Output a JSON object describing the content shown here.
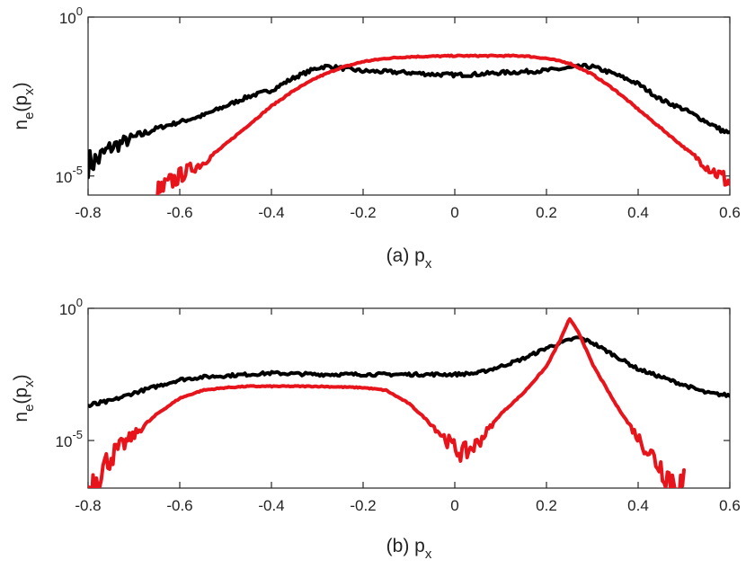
{
  "colors": {
    "series_black": "#000000",
    "series_red": "#e8141b",
    "axes": "#262626"
  },
  "chart_data": [
    {
      "type": "line",
      "panel": "a",
      "xlabel": "(a) p",
      "xlabel_sub": "x",
      "ylabel": "n",
      "ylabel_sub": "e",
      "ylabel_arg": "(p",
      "ylabel_arg_sub": "x",
      "ylabel_close": ")",
      "xlim": [
        -0.8,
        0.6
      ],
      "ylim_log10": [
        -5.6,
        0
      ],
      "xticks": [
        -0.8,
        -0.6,
        -0.4,
        -0.2,
        0,
        0.2,
        0.4,
        0.6
      ],
      "xtick_labels": [
        "-0.8",
        "-0.6",
        "-0.4",
        "-0.2",
        "0",
        "0.2",
        "0.4",
        "0.6"
      ],
      "yticks_log10": [
        0,
        -5
      ],
      "ytick_base": "10",
      "ytick_exps": [
        "0",
        "-5"
      ],
      "series": [
        {
          "name": "black",
          "color": "#000000",
          "x": [
            -0.8,
            -0.78,
            -0.75,
            -0.7,
            -0.65,
            -0.6,
            -0.55,
            -0.5,
            -0.45,
            -0.4,
            -0.35,
            -0.3,
            -0.28,
            -0.25,
            -0.2,
            -0.15,
            -0.1,
            -0.05,
            0,
            0.05,
            0.1,
            0.15,
            0.2,
            0.25,
            0.28,
            0.3,
            0.35,
            0.4,
            0.45,
            0.5,
            0.55,
            0.6
          ],
          "y_log10": [
            -4.6,
            -4.5,
            -4.1,
            -3.8,
            -3.5,
            -3.3,
            -3.1,
            -2.8,
            -2.5,
            -2.3,
            -1.9,
            -1.6,
            -1.55,
            -1.6,
            -1.7,
            -1.72,
            -1.75,
            -1.8,
            -1.82,
            -1.8,
            -1.75,
            -1.72,
            -1.68,
            -1.6,
            -1.55,
            -1.56,
            -1.8,
            -2.1,
            -2.6,
            -2.9,
            -3.3,
            -3.7
          ]
        },
        {
          "name": "red",
          "color": "#e8141b",
          "x": [
            -0.65,
            -0.62,
            -0.58,
            -0.55,
            -0.5,
            -0.45,
            -0.4,
            -0.35,
            -0.3,
            -0.25,
            -0.2,
            -0.15,
            -0.1,
            0,
            0.1,
            0.15,
            0.2,
            0.25,
            0.3,
            0.35,
            0.4,
            0.45,
            0.5,
            0.55,
            0.6
          ],
          "y_log10": [
            -5.6,
            -5.2,
            -4.8,
            -4.6,
            -4.0,
            -3.4,
            -2.8,
            -2.3,
            -1.9,
            -1.6,
            -1.4,
            -1.3,
            -1.25,
            -1.22,
            -1.22,
            -1.22,
            -1.3,
            -1.45,
            -1.8,
            -2.3,
            -2.9,
            -3.5,
            -4.1,
            -4.7,
            -5.2
          ]
        }
      ]
    },
    {
      "type": "line",
      "panel": "b",
      "xlabel": "(b) p",
      "xlabel_sub": "x",
      "ylabel": "n",
      "ylabel_sub": "e",
      "ylabel_arg": "(p",
      "ylabel_arg_sub": "x",
      "ylabel_close": ")",
      "xlim": [
        -0.8,
        0.6
      ],
      "ylim_log10": [
        -6.8,
        0
      ],
      "xticks": [
        -0.8,
        -0.6,
        -0.4,
        -0.2,
        0,
        0.2,
        0.4,
        0.6
      ],
      "xtick_labels": [
        "-0.8",
        "-0.6",
        "-0.4",
        "-0.2",
        "0",
        "0.2",
        "0.4",
        "0.6"
      ],
      "yticks_log10": [
        0,
        -5
      ],
      "ytick_base": "10",
      "ytick_exps": [
        "0",
        "-5"
      ],
      "series": [
        {
          "name": "black",
          "color": "#000000",
          "x": [
            -0.8,
            -0.75,
            -0.7,
            -0.65,
            -0.6,
            -0.55,
            -0.5,
            -0.4,
            -0.3,
            -0.2,
            -0.1,
            0,
            0.05,
            0.1,
            0.15,
            0.2,
            0.25,
            0.27,
            0.3,
            0.35,
            0.4,
            0.45,
            0.5,
            0.55,
            0.6
          ],
          "y_log10": [
            -3.7,
            -3.5,
            -3.2,
            -2.95,
            -2.7,
            -2.6,
            -2.55,
            -2.45,
            -2.5,
            -2.5,
            -2.5,
            -2.5,
            -2.45,
            -2.2,
            -1.9,
            -1.5,
            -1.2,
            -1.1,
            -1.3,
            -1.8,
            -2.3,
            -2.6,
            -2.9,
            -3.2,
            -3.3
          ]
        },
        {
          "name": "red",
          "color": "#e8141b",
          "x": [
            -0.8,
            -0.75,
            -0.7,
            -0.65,
            -0.6,
            -0.55,
            -0.5,
            -0.45,
            -0.4,
            -0.3,
            -0.2,
            -0.15,
            -0.1,
            -0.05,
            0,
            0.02,
            0.05,
            0.1,
            0.15,
            0.2,
            0.23,
            0.25,
            0.27,
            0.3,
            0.35,
            0.4,
            0.45,
            0.48,
            0.5
          ],
          "y_log10": [
            -6.8,
            -5.6,
            -4.8,
            -4.0,
            -3.4,
            -3.1,
            -3.0,
            -2.95,
            -2.95,
            -2.95,
            -3.0,
            -3.1,
            -3.6,
            -4.4,
            -5.3,
            -5.5,
            -5.1,
            -4.0,
            -3.2,
            -2.2,
            -1.2,
            -0.4,
            -0.9,
            -2.1,
            -3.6,
            -4.9,
            -6.0,
            -6.6,
            -6.8
          ]
        }
      ]
    }
  ]
}
